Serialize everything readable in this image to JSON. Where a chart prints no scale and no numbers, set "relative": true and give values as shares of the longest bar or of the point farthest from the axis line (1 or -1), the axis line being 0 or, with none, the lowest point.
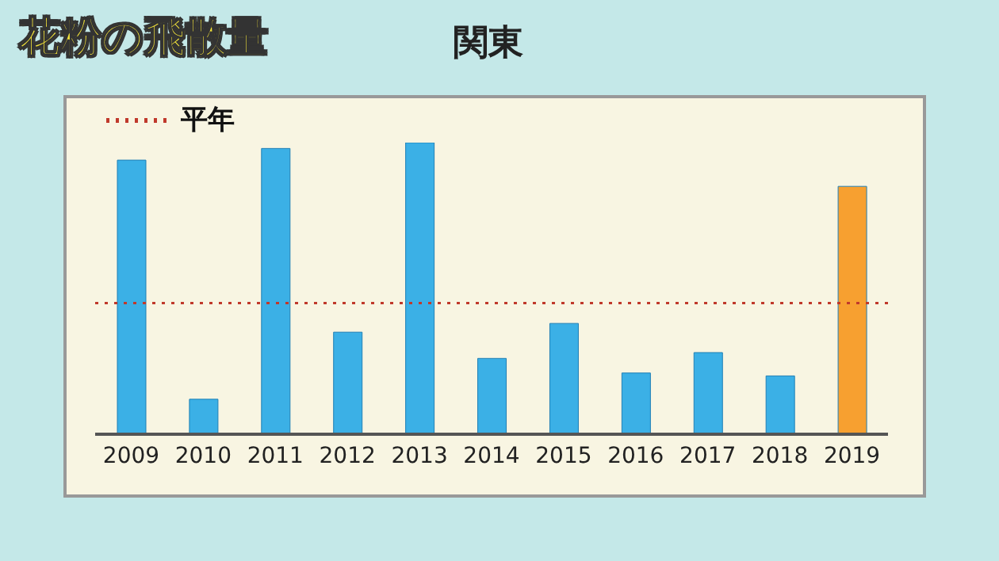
{
  "chart_data": {
    "type": "bar",
    "title": "花粉の飛散量",
    "subtitle": "関東",
    "categories": [
      "2009",
      "2010",
      "2011",
      "2012",
      "2013",
      "2014",
      "2015",
      "2016",
      "2017",
      "2018",
      "2019"
    ],
    "values": [
      0.94,
      0.12,
      0.98,
      0.35,
      1,
      0.26,
      0.38,
      0.21,
      0.28,
      0.2,
      0.85
    ],
    "colors": [
      "#3bb0e6",
      "#3bb0e6",
      "#3bb0e6",
      "#3bb0e6",
      "#3bb0e6",
      "#3bb0e6",
      "#3bb0e6",
      "#3bb0e6",
      "#3bb0e6",
      "#3bb0e6",
      "#f7a030"
    ],
    "relative": true,
    "ref_lines": [
      {
        "axis": "y",
        "value": 0.45,
        "label": "平年",
        "color": "#c0392b",
        "line_style": "dotted"
      }
    ]
  }
}
